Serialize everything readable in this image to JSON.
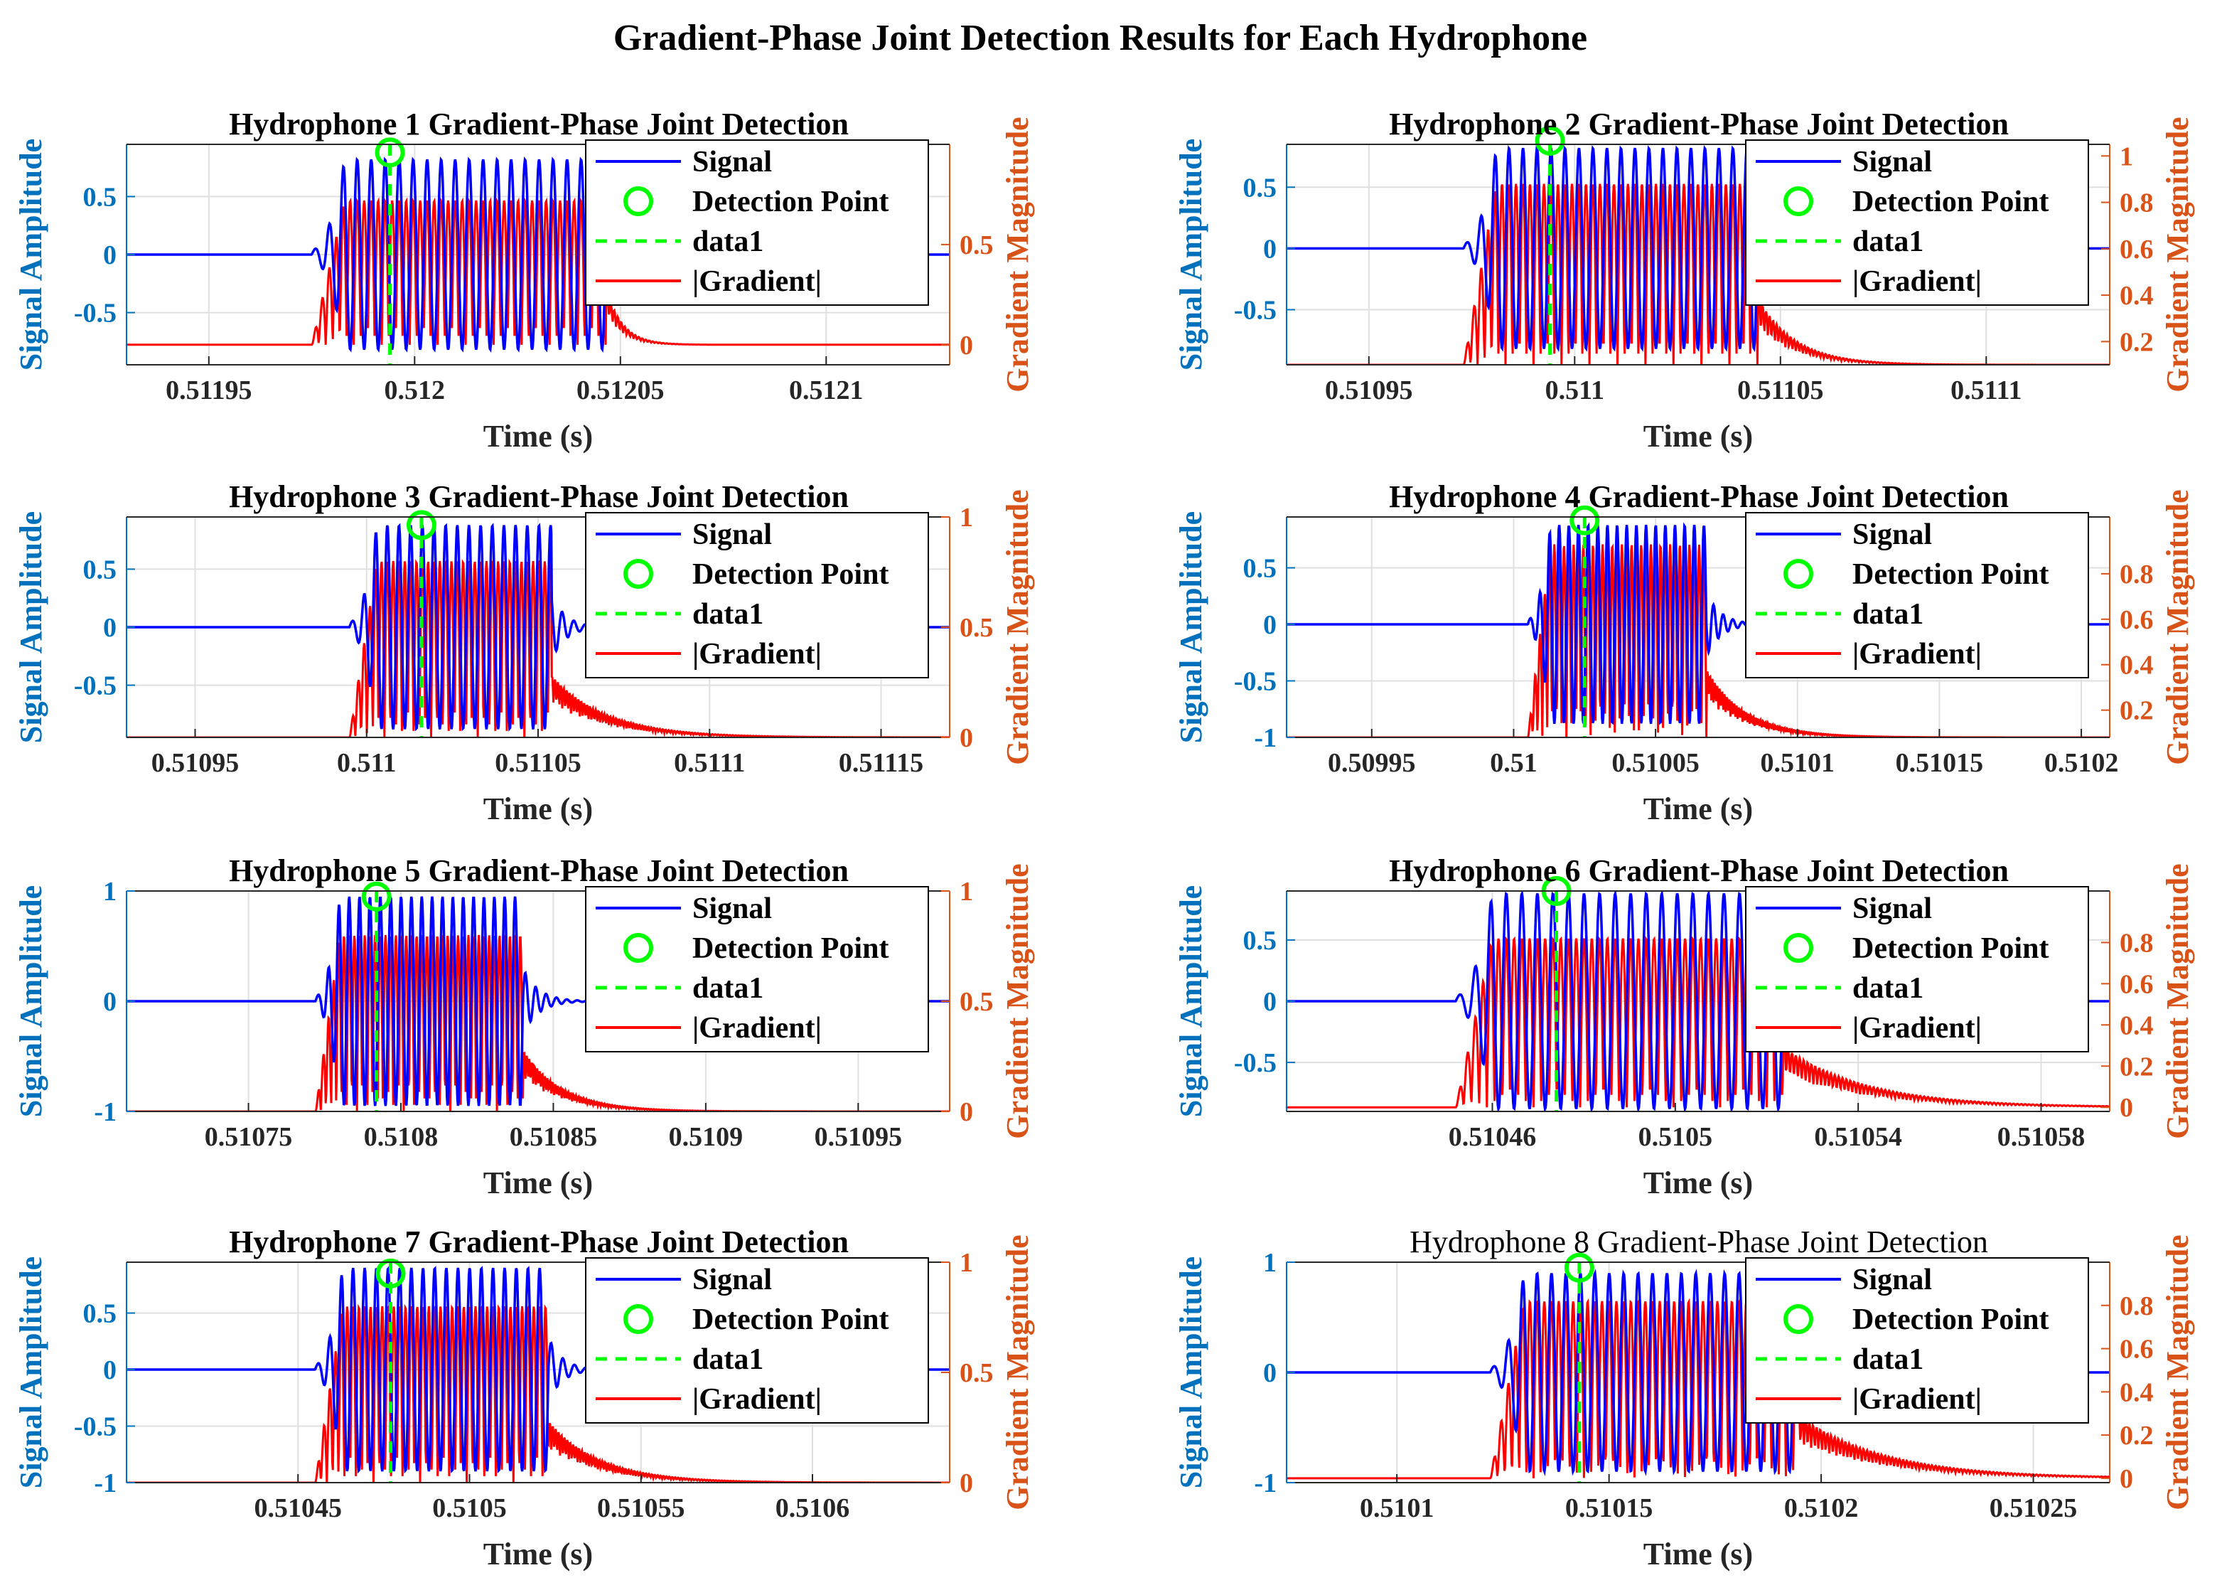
{
  "figure_title": "Gradient-Phase Joint Detection Results for Each Hydrophone",
  "colors": {
    "signal": "#0000ff",
    "gradient": "#ff0000",
    "detection": "#00ff00",
    "left_axis": "#0072bd",
    "right_axis": "#d95319",
    "grid": "#e0e0e0",
    "axis_box": "#262626"
  },
  "chart_data": [
    {
      "type": "line",
      "title": "Hydrophone 1 Gradient-Phase Joint Detection",
      "title_bold": true,
      "xlabel": "Time (s)",
      "ylabel_left": "Signal Amplitude",
      "ylabel_right": "Gradient Magnitude",
      "xlim": [
        0.51193,
        0.51213
      ],
      "xticks": [
        0.51195,
        0.512,
        0.51205,
        0.5121
      ],
      "xtick_labels": [
        "0.51195",
        "0.512",
        "0.51205",
        "0.5121"
      ],
      "ylim_left": [
        -0.95,
        0.95
      ],
      "yticks_left": [
        -0.5,
        0,
        0.5
      ],
      "ytick_labels_left": [
        "-0.5",
        "0",
        "0.5"
      ],
      "ylim_right": [
        -0.1,
        1.0
      ],
      "yticks_right": [
        0,
        0.5
      ],
      "ytick_labels_right": [
        "0",
        "0.5"
      ],
      "legend": [
        "Signal",
        "Detection Point",
        "data1",
        "|Gradient|"
      ],
      "signal": {
        "onset": 0.511975,
        "period": 3.4e-06,
        "rise": 8e-06,
        "end": 0.512047,
        "decay": 3e-06,
        "amplitude": 0.82
      },
      "gradient": {
        "onset": 0.511975,
        "end": 0.512047,
        "tail": 4e-06,
        "peak": 0.72,
        "baseline": 0.0
      },
      "detection": {
        "time": 0.511994,
        "value": 0.88
      }
    },
    {
      "type": "line",
      "title": "Hydrophone 2 Gradient-Phase Joint Detection",
      "title_bold": true,
      "xlabel": "Time (s)",
      "ylabel_left": "Signal Amplitude",
      "ylabel_right": "Gradient Magnitude",
      "xlim": [
        0.51093,
        0.51113
      ],
      "xticks": [
        0.51095,
        0.511,
        0.51105,
        0.5111
      ],
      "xtick_labels": [
        "0.51095",
        "0.511",
        "0.51105",
        "0.5111"
      ],
      "ylim_left": [
        -0.95,
        0.85
      ],
      "yticks_left": [
        -0.5,
        0,
        0.5
      ],
      "ytick_labels_left": [
        "-0.5",
        "0",
        "0.5"
      ],
      "ylim_right": [
        0.1,
        1.05
      ],
      "yticks_right": [
        0.2,
        0.4,
        0.6,
        0.8,
        1
      ],
      "ytick_labels_right": [
        "0.2",
        "0.4",
        "0.6",
        "0.8",
        "1"
      ],
      "legend": [
        "Signal",
        "Detection Point",
        "data1",
        "|Gradient|"
      ],
      "signal": {
        "onset": 0.510973,
        "period": 3.4e-06,
        "rise": 8e-06,
        "end": 0.511045,
        "decay": 4e-06,
        "amplitude": 0.82
      },
      "gradient": {
        "onset": 0.510973,
        "end": 0.511045,
        "tail": 9e-06,
        "peak": 0.78,
        "baseline": 0.1
      },
      "detection": {
        "time": 0.510994,
        "value": 0.88
      }
    },
    {
      "type": "line",
      "title": "Hydrophone 3 Gradient-Phase Joint Detection",
      "title_bold": true,
      "xlabel": "Time (s)",
      "ylabel_left": "Signal Amplitude",
      "ylabel_right": "Gradient Magnitude",
      "xlim": [
        0.51093,
        0.51117
      ],
      "xticks": [
        0.51095,
        0.511,
        0.51105,
        0.5111,
        0.51115
      ],
      "xtick_labels": [
        "0.51095",
        "0.511",
        "0.51105",
        "0.5111",
        "0.51115"
      ],
      "ylim_left": [
        -0.95,
        0.95
      ],
      "yticks_left": [
        -0.5,
        0,
        0.5
      ],
      "ytick_labels_left": [
        "-0.5",
        "0",
        "0.5"
      ],
      "ylim_right": [
        0,
        1.0
      ],
      "yticks_right": [
        0,
        0.5,
        1
      ],
      "ytick_labels_right": [
        "0",
        "0.5",
        "1"
      ],
      "legend": [
        "Signal",
        "Detection Point",
        "data1",
        "|Gradient|"
      ],
      "signal": {
        "onset": 0.510995,
        "period": 3.4e-06,
        "rise": 8e-06,
        "end": 0.511054,
        "decay": 4e-06,
        "amplitude": 0.88
      },
      "gradient": {
        "onset": 0.510995,
        "end": 0.511054,
        "tail": 1.6e-05,
        "peak": 0.8,
        "baseline": 0.0
      },
      "detection": {
        "time": 0.511016,
        "value": 0.88
      }
    },
    {
      "type": "line",
      "title": "Hydrophone 4 Gradient-Phase Joint Detection",
      "title_bold": true,
      "xlabel": "Time (s)",
      "ylabel_left": "Signal Amplitude",
      "ylabel_right": "Gradient Magnitude",
      "xlim": [
        0.50992,
        0.51021
      ],
      "xticks": [
        0.50995,
        0.51,
        0.51005,
        0.5101,
        0.51015,
        0.5102
      ],
      "xtick_labels": [
        "0.50995",
        "0.51",
        "0.51005",
        "0.5101",
        "0.51015",
        "0.5102"
      ],
      "ylim_left": [
        -1.0,
        0.95
      ],
      "yticks_left": [
        -1,
        -0.5,
        0,
        0.5
      ],
      "ytick_labels_left": [
        "-1",
        "-0.5",
        "0",
        "0.5"
      ],
      "ylim_right": [
        0.08,
        1.05
      ],
      "yticks_right": [
        0.2,
        0.4,
        0.6,
        0.8
      ],
      "ytick_labels_right": [
        "0.2",
        "0.4",
        "0.6",
        "0.8"
      ],
      "legend": [
        "Signal",
        "Detection Point",
        "data1",
        "|Gradient|"
      ],
      "signal": {
        "onset": 0.510005,
        "period": 3.4e-06,
        "rise": 8e-06,
        "end": 0.510068,
        "decay": 5e-06,
        "amplitude": 0.88
      },
      "gradient": {
        "onset": 0.510005,
        "end": 0.510068,
        "tail": 1.4e-05,
        "peak": 0.85,
        "baseline": 0.08
      },
      "detection": {
        "time": 0.510025,
        "value": 0.92
      }
    },
    {
      "type": "line",
      "title": "Hydrophone 5 Gradient-Phase Joint Detection",
      "title_bold": true,
      "xlabel": "Time (s)",
      "ylabel_left": "Signal Amplitude",
      "ylabel_right": "Gradient Magnitude",
      "xlim": [
        0.51071,
        0.51098
      ],
      "xticks": [
        0.5108,
        0.51085,
        0.5109,
        0.51095
      ],
      "xtick_labels": [
        "0.5108",
        "0.51085",
        "0.5109",
        "0.51095"
      ],
      "extra_xticks": [
        0.51075
      ],
      "extra_xtick_labels": [
        "0.51075"
      ],
      "ylim_left": [
        -1.0,
        1.0
      ],
      "yticks_left": [
        -1,
        0,
        1
      ],
      "ytick_labels_left": [
        "-1",
        "0",
        "1"
      ],
      "ylim_right": [
        0,
        1.0
      ],
      "yticks_right": [
        0,
        0.5,
        1
      ],
      "ytick_labels_right": [
        "0",
        "0.5",
        "1"
      ],
      "legend": [
        "Signal",
        "Detection Point",
        "data1",
        "|Gradient|"
      ],
      "signal": {
        "onset": 0.510772,
        "period": 3.4e-06,
        "rise": 8e-06,
        "end": 0.51084,
        "decay": 5e-06,
        "amplitude": 0.95
      },
      "gradient": {
        "onset": 0.510772,
        "end": 0.51084,
        "tail": 1.3e-05,
        "peak": 0.8,
        "baseline": 0.0
      },
      "detection": {
        "time": 0.510792,
        "value": 0.95
      }
    },
    {
      "type": "line",
      "title": "Hydrophone 6 Gradient-Phase Joint Detection",
      "title_bold": true,
      "xlabel": "Time (s)",
      "ylabel_left": "Signal Amplitude",
      "ylabel_right": "Gradient Magnitude",
      "xlim": [
        0.510415,
        0.510595
      ],
      "xticks": [
        0.51046,
        0.5105,
        0.51054,
        0.51058
      ],
      "xtick_labels": [
        "0.51046",
        "0.5105",
        "0.51054",
        "0.51058"
      ],
      "ylim_left": [
        -0.9,
        0.9
      ],
      "yticks_left": [
        -0.5,
        0,
        0.5
      ],
      "ytick_labels_left": [
        "-0.5",
        "0",
        "0.5"
      ],
      "ylim_right": [
        -0.02,
        1.05
      ],
      "yticks_right": [
        0,
        0.2,
        0.4,
        0.6,
        0.8
      ],
      "ytick_labels_right": [
        "0",
        "0.2",
        "0.4",
        "0.6",
        "0.8"
      ],
      "legend": [
        "Signal",
        "Detection Point",
        "data1",
        "|Gradient|"
      ],
      "signal": {
        "onset": 0.510452,
        "period": 3.4e-06,
        "rise": 8e-06,
        "end": 0.510524,
        "decay": 4e-06,
        "amplitude": 0.88
      },
      "gradient": {
        "onset": 0.510452,
        "end": 0.510524,
        "tail": 1.8e-05,
        "peak": 0.82,
        "baseline": 0.0
      },
      "detection": {
        "time": 0.510474,
        "value": 0.9
      }
    },
    {
      "type": "line",
      "title": "Hydrophone 7 Gradient-Phase Joint Detection",
      "title_bold": true,
      "xlabel": "Time (s)",
      "ylabel_left": "Signal Amplitude",
      "ylabel_right": "Gradient Magnitude",
      "xlim": [
        0.5104,
        0.51064
      ],
      "xticks": [
        0.51045,
        0.5105,
        0.51055,
        0.5106
      ],
      "xtick_labels": [
        "0.51045",
        "0.5105",
        "0.51055",
        "0.5106"
      ],
      "ylim_left": [
        -1.0,
        0.95
      ],
      "yticks_left": [
        -1,
        -0.5,
        0,
        0.5
      ],
      "ytick_labels_left": [
        "-1",
        "-0.5",
        "0",
        "0.5"
      ],
      "ylim_right": [
        0,
        1.0
      ],
      "yticks_right": [
        0,
        0.5,
        1
      ],
      "ytick_labels_right": [
        "0",
        "0.5",
        "1"
      ],
      "legend": [
        "Signal",
        "Detection Point",
        "data1",
        "|Gradient|"
      ],
      "signal": {
        "onset": 0.510455,
        "period": 3.4e-06,
        "rise": 8e-06,
        "end": 0.510523,
        "decay": 4e-06,
        "amplitude": 0.9
      },
      "gradient": {
        "onset": 0.510455,
        "end": 0.510523,
        "tail": 1.5e-05,
        "peak": 0.8,
        "baseline": 0.0
      },
      "detection": {
        "time": 0.510477,
        "value": 0.85
      }
    },
    {
      "type": "line",
      "title": "Hydrophone 8 Gradient-Phase Joint Detection",
      "title_bold": false,
      "xlabel": "Time (s)",
      "ylabel_left": "Signal Amplitude",
      "ylabel_right": "Gradient Magnitude",
      "xlim": [
        0.510074,
        0.510268
      ],
      "xticks": [
        0.5101,
        0.51015,
        0.5102,
        0.51025
      ],
      "xtick_labels": [
        "0.5101",
        "0.51015",
        "0.5102",
        "0.51025"
      ],
      "ylim_left": [
        -1.0,
        1.0
      ],
      "yticks_left": [
        -1,
        0,
        1
      ],
      "ytick_labels_left": [
        "-1",
        "0",
        "1"
      ],
      "ylim_right": [
        -0.02,
        1.0
      ],
      "yticks_right": [
        0,
        0.2,
        0.4,
        0.6,
        0.8
      ],
      "ytick_labels_right": [
        "0",
        "0.2",
        "0.4",
        "0.6",
        "0.8"
      ],
      "legend": [
        "Signal",
        "Detection Point",
        "data1",
        "|Gradient|"
      ],
      "signal": {
        "onset": 0.510122,
        "period": 3.4e-06,
        "rise": 8e-06,
        "end": 0.510195,
        "decay": 4e-06,
        "amplitude": 0.9
      },
      "gradient": {
        "onset": 0.510122,
        "end": 0.510195,
        "tail": 2e-05,
        "peak": 0.82,
        "baseline": 0.0
      },
      "detection": {
        "time": 0.510143,
        "value": 0.95
      }
    }
  ]
}
